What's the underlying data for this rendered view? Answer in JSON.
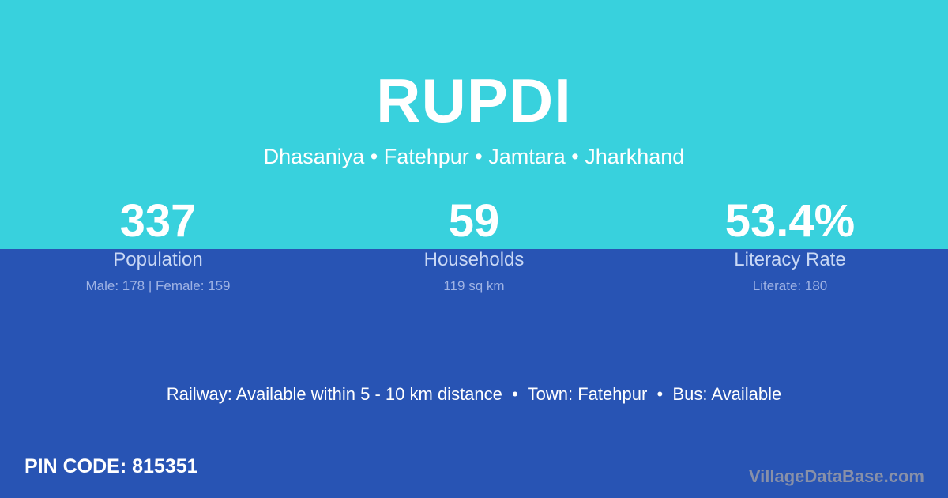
{
  "village": "RUPDI",
  "location": "Dhasaniya • Fatehpur • Jamtara • Jharkhand",
  "stats": [
    {
      "value": "337",
      "label": "Population",
      "detail": "Male: 178 | Female: 159"
    },
    {
      "value": "59",
      "label": "Households",
      "detail": "119 sq km"
    },
    {
      "value": "53.4%",
      "label": "Literacy Rate",
      "detail": "Literate: 180"
    }
  ],
  "connectivity": "Railway: Available within 5 - 10 km distance  •  Town: Fatehpur  •  Bus: Available",
  "pin": "PIN CODE: 815351",
  "watermark": "VillageDataBase.com",
  "colors": {
    "top": "#38d1dd",
    "bottom": "#2854b4"
  }
}
